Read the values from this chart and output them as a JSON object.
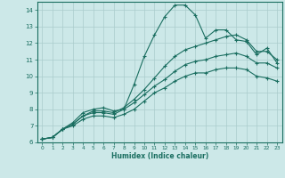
{
  "xlabel": "Humidex (Indice chaleur)",
  "ylabel": "",
  "bg_color": "#cce8e8",
  "grid_color": "#aacccc",
  "line_color": "#1a6e60",
  "marker": "+",
  "xlim": [
    0,
    23
  ],
  "ylim": [
    6,
    14.5
  ],
  "xtick_labels": [
    "0",
    "1",
    "2",
    "3",
    "4",
    "5",
    "6",
    "7",
    "8",
    "9",
    "10",
    "11",
    "12",
    "13",
    "14",
    "15",
    "16",
    "17",
    "18",
    "19",
    "20",
    "21",
    "22",
    "23"
  ],
  "yticks": [
    6,
    7,
    8,
    9,
    10,
    11,
    12,
    13,
    14
  ],
  "series": [
    [
      6.2,
      6.3,
      6.8,
      7.2,
      7.8,
      8.0,
      8.1,
      7.9,
      8.0,
      9.5,
      11.2,
      12.5,
      13.6,
      14.3,
      14.3,
      13.7,
      12.3,
      12.8,
      12.8,
      12.2,
      12.1,
      11.3,
      11.7,
      10.8
    ],
    [
      6.2,
      6.3,
      6.8,
      7.1,
      7.6,
      7.9,
      7.9,
      7.8,
      8.1,
      8.6,
      9.2,
      9.9,
      10.6,
      11.2,
      11.6,
      11.8,
      12.0,
      12.2,
      12.4,
      12.5,
      12.2,
      11.5,
      11.5,
      11.0
    ],
    [
      6.2,
      6.3,
      6.8,
      7.1,
      7.6,
      7.8,
      7.8,
      7.7,
      8.0,
      8.4,
      8.9,
      9.4,
      9.8,
      10.3,
      10.7,
      10.9,
      11.0,
      11.2,
      11.3,
      11.4,
      11.2,
      10.8,
      10.8,
      10.5
    ],
    [
      6.2,
      6.3,
      6.8,
      7.0,
      7.4,
      7.6,
      7.6,
      7.5,
      7.7,
      8.0,
      8.5,
      9.0,
      9.3,
      9.7,
      10.0,
      10.2,
      10.2,
      10.4,
      10.5,
      10.5,
      10.4,
      10.0,
      9.9,
      9.7
    ]
  ]
}
